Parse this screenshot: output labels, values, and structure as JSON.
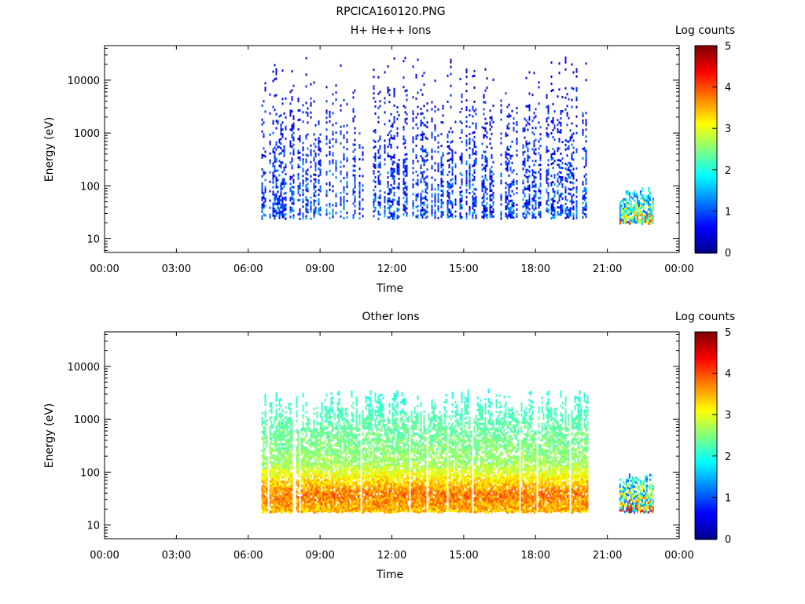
{
  "figure_title": "RPCICA160120.PNG",
  "colors": {
    "axis": "#000000",
    "background": "#ffffff",
    "colormap": [
      "#00008f",
      "#0000ff",
      "#0080ff",
      "#00ffff",
      "#80ff80",
      "#ffff00",
      "#ff8000",
      "#ff0000",
      "#800000"
    ]
  },
  "chart_data": [
    {
      "type": "heatmap",
      "title": "H+ He++ Ions",
      "xlabel": "Time",
      "ylabel": "Energy (eV)",
      "x_ticks": [
        "00:00",
        "03:00",
        "06:00",
        "09:00",
        "12:00",
        "15:00",
        "18:00",
        "21:00",
        "00:00"
      ],
      "xlim_hours": [
        0,
        24
      ],
      "y_scale": "log",
      "y_ticks": [
        "10",
        "100",
        "1000",
        "10000"
      ],
      "ylim": [
        5.5,
        45000
      ],
      "colorbar": {
        "label": "Log counts",
        "ticks": [
          "0",
          "1",
          "2",
          "3",
          "4",
          "5"
        ],
        "range": [
          0,
          5
        ]
      },
      "data_segments": [
        {
          "start_hour": 6.55,
          "end_hour": 20.2,
          "energy_range": [
            25,
            35000
          ],
          "typical_log_counts": [
            0.3,
            1.2
          ],
          "note": "sparse"
        },
        {
          "start_hour": 21.5,
          "end_hour": 22.9,
          "energy_range": [
            20,
            95
          ],
          "typical_log_counts": [
            1.0,
            3.5
          ]
        }
      ]
    },
    {
      "type": "heatmap",
      "title": "Other Ions",
      "xlabel": "Time",
      "ylabel": "Energy (eV)",
      "x_ticks": [
        "00:00",
        "03:00",
        "06:00",
        "09:00",
        "12:00",
        "15:00",
        "18:00",
        "21:00",
        "00:00"
      ],
      "xlim_hours": [
        0,
        24
      ],
      "y_scale": "log",
      "y_ticks": [
        "10",
        "100",
        "1000",
        "10000"
      ],
      "ylim": [
        5.5,
        45000
      ],
      "colorbar": {
        "label": "Log counts",
        "ticks": [
          "0",
          "1",
          "2",
          "3",
          "4",
          "5"
        ],
        "range": [
          0,
          5
        ]
      },
      "data_segments": [
        {
          "start_hour": 6.55,
          "end_hour": 20.2,
          "energy_range": [
            18,
            4000
          ],
          "peak_energy": 40,
          "peak_log_counts": 4.2,
          "typical_log_counts": [
            1.5,
            3.5
          ]
        },
        {
          "start_hour": 21.5,
          "end_hour": 22.9,
          "energy_range": [
            18,
            95
          ],
          "typical_log_counts": [
            1.0,
            3.8
          ]
        }
      ]
    }
  ]
}
